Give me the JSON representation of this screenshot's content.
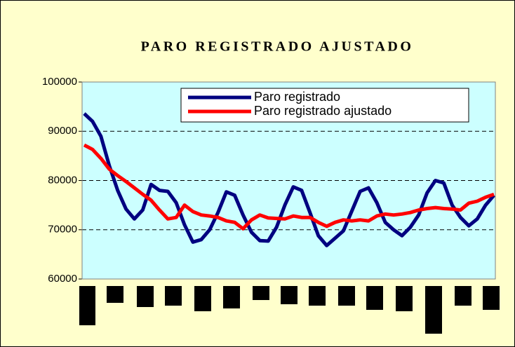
{
  "chart_data": {
    "type": "line",
    "title": "PARO REGISTRADO AJUSTADO",
    "ylim": [
      60000,
      100000
    ],
    "yticks": [
      60000,
      70000,
      80000,
      90000,
      100000
    ],
    "grid": true,
    "series": [
      {
        "name": "Paro registrado",
        "color": "#000080",
        "values": [
          93600,
          92000,
          89000,
          83000,
          78000,
          74200,
          72200,
          74000,
          79200,
          78000,
          77800,
          75500,
          71000,
          67500,
          68000,
          70000,
          73500,
          77700,
          77000,
          73000,
          69500,
          67800,
          67700,
          70500,
          75000,
          78700,
          78000,
          73500,
          68800,
          66800,
          68300,
          69800,
          73800,
          77800,
          78500,
          75500,
          71500,
          70000,
          68800,
          70500,
          73000,
          77500,
          80000,
          79500,
          75000,
          72500,
          70800,
          72200,
          75000,
          77000
        ]
      },
      {
        "name": "Paro registrado ajustado",
        "color": "#ff0000",
        "values": [
          87200,
          86300,
          84500,
          82300,
          81000,
          79800,
          78500,
          77200,
          76000,
          74000,
          72200,
          72500,
          75000,
          73700,
          73000,
          72800,
          72500,
          71800,
          71500,
          70200,
          72000,
          73000,
          72400,
          72300,
          72200,
          72800,
          72500,
          72500,
          71500,
          70700,
          71500,
          72000,
          71800,
          72000,
          71800,
          72800,
          73200,
          73000,
          73200,
          73500,
          74000,
          74300,
          74500,
          74300,
          74200,
          74000,
          75400,
          75800,
          76600,
          77200
        ]
      }
    ]
  }
}
